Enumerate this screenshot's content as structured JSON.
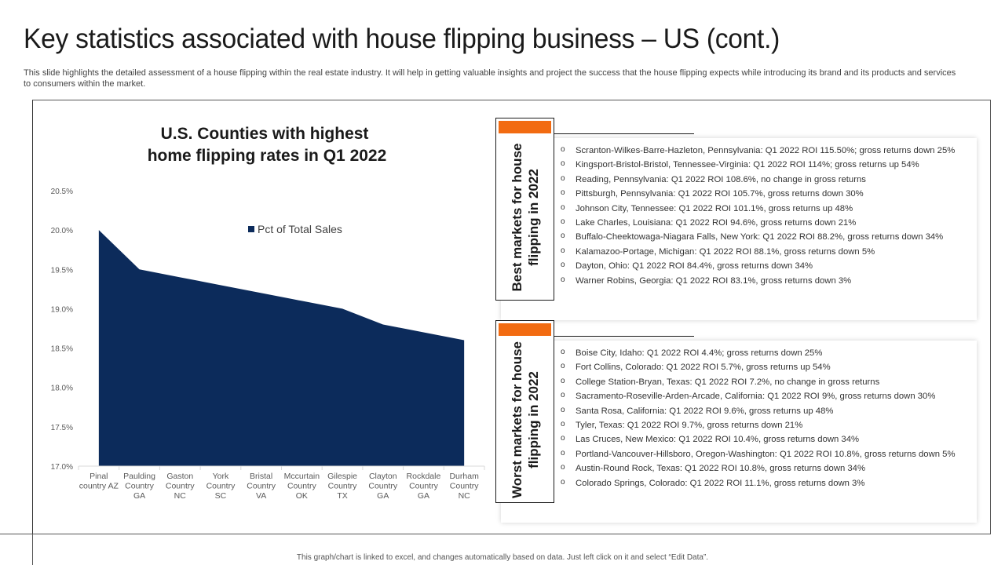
{
  "slide": {
    "title": "Key statistics associated with house flipping business – US (cont.)",
    "description": "This slide highlights the detailed assessment of a house flipping within the real estate industry. It will help in getting valuable insights and project the success that the house flipping expects while introducing its brand and its products and services to consumers within the market.",
    "footer": "This graph/chart is linked to excel, and changes automatically based on data. Just left click on it and select “Edit Data”."
  },
  "colors": {
    "series_fill": "#0c2b5b",
    "accent": "#f26b11",
    "axis": "#d9d9d9"
  },
  "chart_data": {
    "type": "area",
    "title_line1": "U.S. Counties with highest",
    "title_line2": "home flipping rates in Q1 2022",
    "categories": [
      [
        "Pinal",
        "country AZ"
      ],
      [
        "Paulding",
        "Country",
        "GA"
      ],
      [
        "Gaston",
        "Country",
        "NC"
      ],
      [
        "York",
        "Country",
        "SC"
      ],
      [
        "Bristal",
        "Country",
        "VA"
      ],
      [
        "Mccurtain",
        "Country",
        "OK"
      ],
      [
        "Gilespie",
        "Country",
        "TX"
      ],
      [
        "Clayton",
        "Country",
        "GA"
      ],
      [
        "Rockdale",
        "Country",
        "GA"
      ],
      [
        "Durham",
        "Country",
        "NC"
      ]
    ],
    "series": [
      {
        "name": "Pct of Total Sales",
        "values": [
          20.0,
          19.5,
          19.4,
          19.3,
          19.2,
          19.1,
          19.0,
          18.8,
          18.7,
          18.6
        ]
      }
    ],
    "y_ticks": [
      "20.5%",
      "20.0%",
      "19.5%",
      "19.0%",
      "18.5%",
      "18.0%",
      "17.5%",
      "17.0%"
    ],
    "ylim": [
      17.0,
      20.5
    ],
    "legend_position": "top-right"
  },
  "best": {
    "label_line1": "Best markets for house",
    "label_line2": "flipping in 2022",
    "items": [
      "Scranton-Wilkes-Barre-Hazleton, Pennsylvania: Q1 2022 ROI 115.50%; gross returns down 25%",
      "Kingsport-Bristol-Bristol, Tennessee-Virginia: Q1 2022 ROI 114%; gross returns up 54%",
      "Reading, Pennsylvania: Q1 2022 ROI 108.6%, no change in gross returns",
      "Pittsburgh, Pennsylvania: Q1 2022 ROI 105.7%, gross returns down 30%",
      "Johnson City, Tennessee: Q1 2022 ROI 101.1%, gross returns up 48%",
      "Lake Charles, Louisiana: Q1 2022 ROI 94.6%, gross returns down 21%",
      "Buffalo-Cheektowaga-Niagara Falls, New York: Q1 2022 ROI 88.2%, gross returns down 34%",
      "Kalamazoo-Portage, Michigan: Q1 2022 ROI 88.1%, gross returns down 5%",
      "Dayton, Ohio: Q1 2022 ROI 84.4%, gross returns down 34%",
      "Warner Robins, Georgia: Q1 2022 ROI 83.1%, gross returns down 3%"
    ]
  },
  "worst": {
    "label_line1": "Worst markets for house",
    "label_line2": "flipping in 2022",
    "items": [
      "Boise City, Idaho: Q1 2022 ROI 4.4%; gross returns down 25%",
      "Fort Collins, Colorado: Q1 2022 ROI 5.7%, gross returns up 54%",
      "College Station-Bryan, Texas: Q1 2022 ROI 7.2%, no change in gross returns",
      "Sacramento-Roseville-Arden-Arcade, California: Q1 2022 ROI 9%, gross returns down 30%",
      "Santa Rosa, California: Q1 2022 ROI 9.6%, gross returns up 48%",
      "Tyler, Texas: Q1 2022 ROI 9.7%, gross returns down 21%",
      "Las Cruces, New Mexico: Q1 2022 ROI 10.4%, gross returns down 34%",
      "Portland-Vancouver-Hillsboro, Oregon-Washington: Q1 2022 ROI 10.8%, gross returns down 5%",
      "Austin-Round Rock, Texas: Q1 2022 ROI 10.8%, gross returns down 34%",
      "Colorado Springs, Colorado: Q1 2022 ROI 11.1%, gross returns down 3%"
    ]
  }
}
